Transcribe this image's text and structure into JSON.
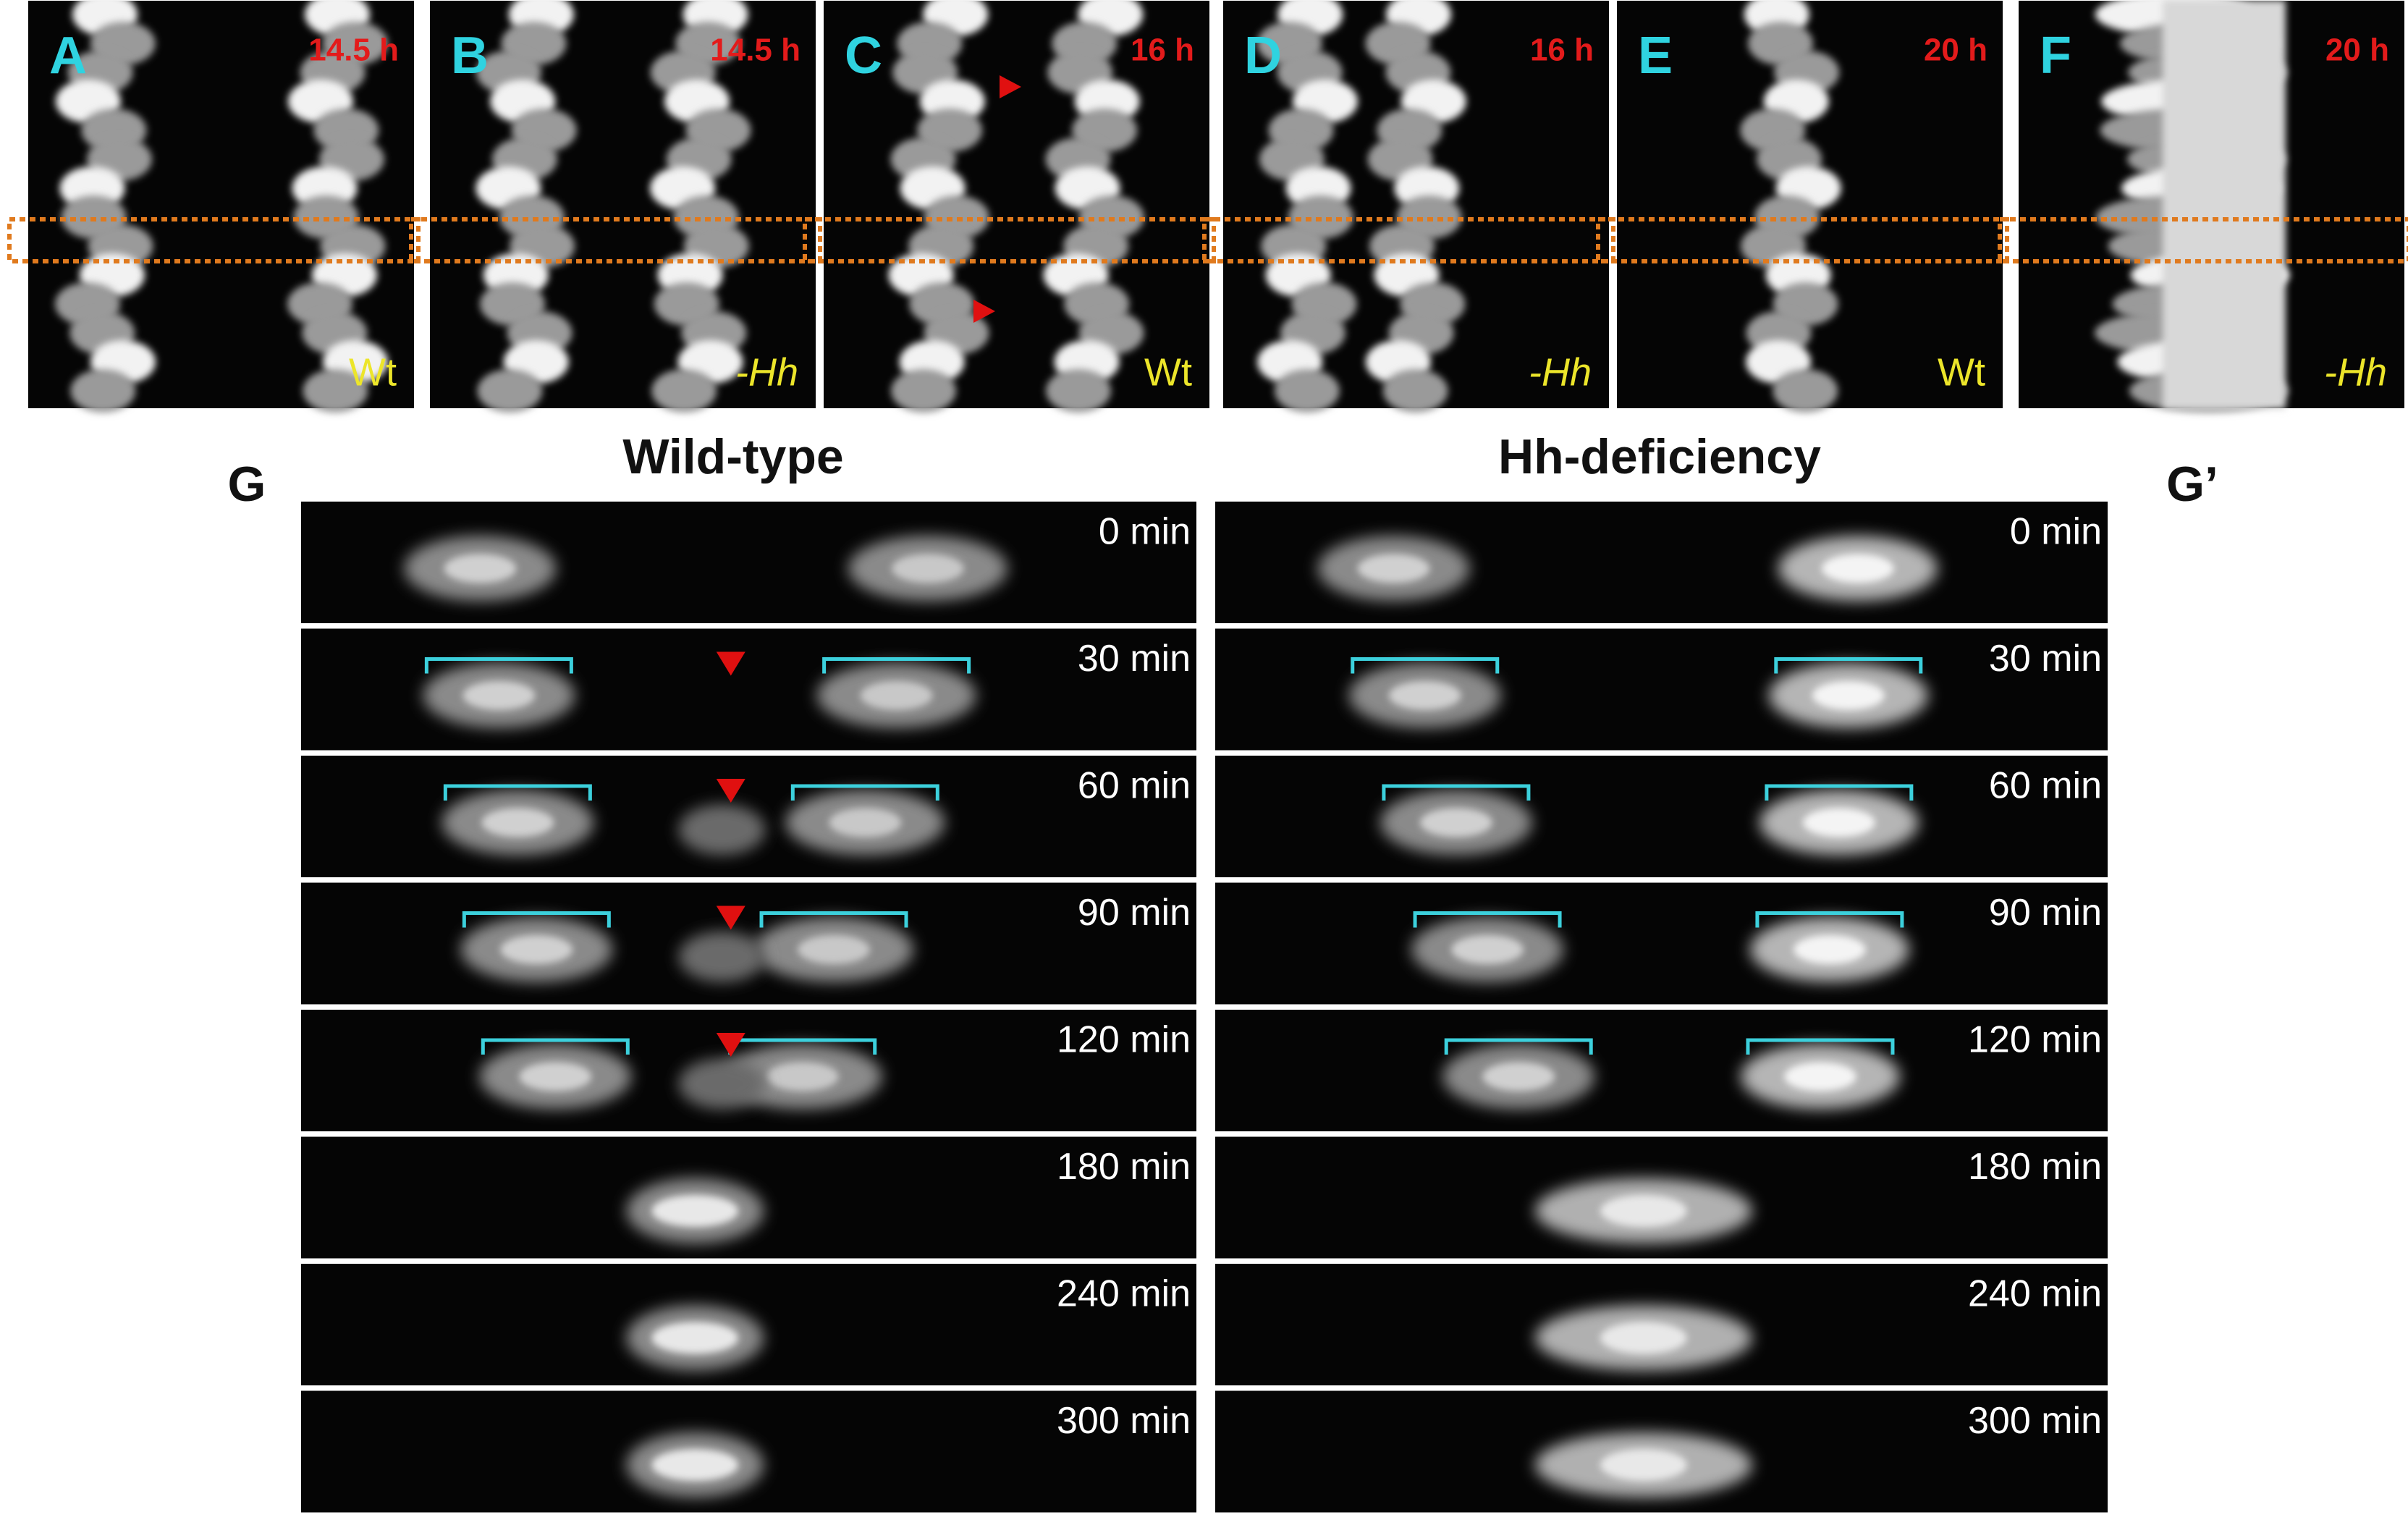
{
  "top_panels": [
    {
      "letter": "A",
      "time": "14.5 h",
      "genotype": "Wt"
    },
    {
      "letter": "B",
      "time": "14.5 h",
      "genotype": "-Hh"
    },
    {
      "letter": "C",
      "time": "16 h",
      "genotype": "Wt"
    },
    {
      "letter": "D",
      "time": "16 h",
      "genotype": "-Hh"
    },
    {
      "letter": "E",
      "time": "20 h",
      "genotype": "Wt"
    },
    {
      "letter": "F",
      "time": "20 h",
      "genotype": "-Hh"
    }
  ],
  "g_label": "G",
  "g_prime_label": "G’",
  "columns": [
    {
      "title": "Wild-type",
      "times": [
        "0 min",
        "30 min",
        "60 min",
        "90 min",
        "120 min",
        "180 min",
        "240 min",
        "300 min"
      ]
    },
    {
      "title": "Hh-deficiency",
      "times": [
        "0 min",
        "30 min",
        "60 min",
        "90 min",
        "120 min",
        "180 min",
        "240 min",
        "300 min"
      ]
    }
  ]
}
